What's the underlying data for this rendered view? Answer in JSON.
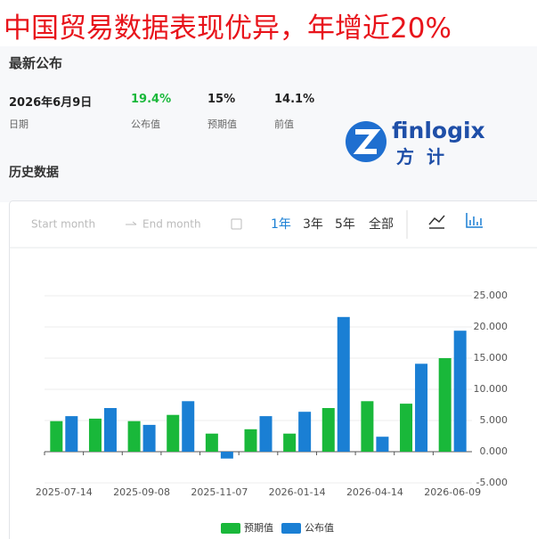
{
  "header": {
    "title": "中国贸易数据表现优异，年增近20%"
  },
  "latest": {
    "heading": "最新公布",
    "date": "2026年6月9日",
    "actual": "19.4%",
    "forecast": "15%",
    "previous": "14.1%",
    "labels": [
      "日期",
      "公布值",
      "预期值",
      "前值"
    ]
  },
  "logo": {
    "brand": "finlogix",
    "chinese": "方计"
  },
  "history": {
    "heading": "历史数据",
    "start_placeholder": "Start month",
    "end_placeholder": "End month",
    "ranges": [
      "1年",
      "3年",
      "5年",
      "全部"
    ]
  },
  "chart_data": {
    "type": "bar",
    "categories": [
      "2025-07-14",
      null,
      "2025-09-08",
      null,
      "2025-11-07",
      null,
      "2026-01-14",
      null,
      "2026-04-14",
      null,
      "2026-06-09"
    ],
    "series": [
      {
        "name": "预期值",
        "color": "#19b83a",
        "values": [
          4.9,
          5.3,
          4.9,
          5.9,
          2.9,
          3.6,
          2.9,
          7.0,
          8.1,
          7.7,
          15
        ]
      },
      {
        "name": "公布值",
        "color": "#1a7fd4",
        "values": [
          5.7,
          7.0,
          4.3,
          8.1,
          -1.1,
          5.7,
          6.4,
          21.6,
          2.4,
          14.1,
          19.4
        ]
      }
    ],
    "ylim": [
      -5,
      25
    ],
    "yticks": [
      {
        "value": -5,
        "label": "-5.000"
      },
      {
        "value": 0,
        "label": "0.000"
      },
      {
        "value": 5,
        "label": "5.000"
      },
      {
        "value": 10,
        "label": "10.000"
      },
      {
        "value": 15,
        "label": "15.000"
      },
      {
        "value": 20,
        "label": "20.000"
      },
      {
        "value": 25,
        "label": "25.000"
      }
    ],
    "grid": true,
    "legend": "bottom"
  }
}
